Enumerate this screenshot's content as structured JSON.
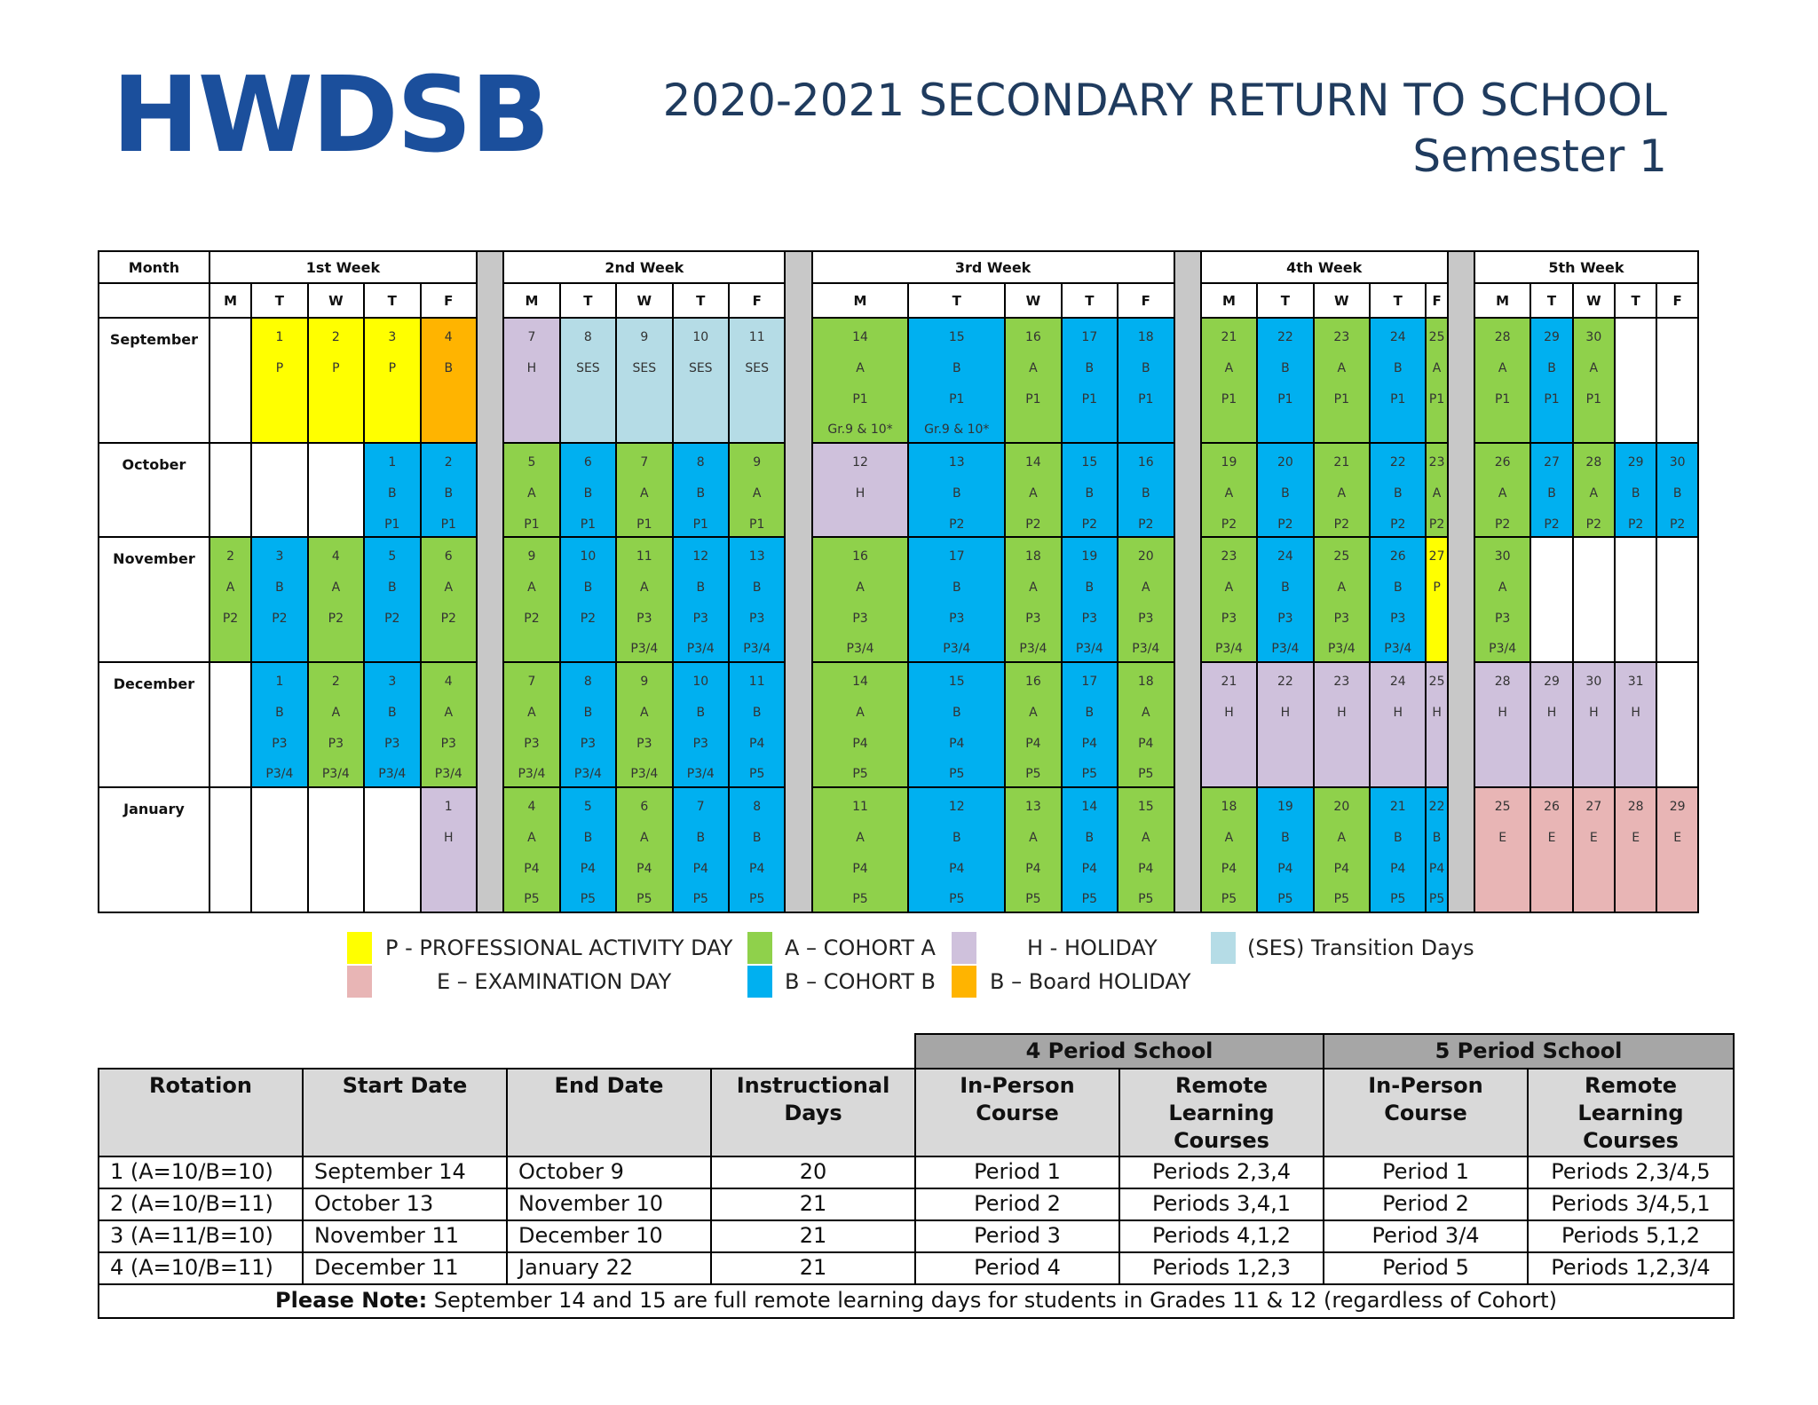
{
  "header": {
    "logo_text": "HWDSB",
    "title_line1": "2020-2021 SECONDARY RETURN TO SCHOOL",
    "title_line2": "Semester 1"
  },
  "calendar": {
    "month_header": "Month",
    "weeks": [
      "1st Week",
      "2nd Week",
      "3rd Week",
      "4th Week",
      "5th Week"
    ],
    "day_letters": [
      "M",
      "T",
      "W",
      "T",
      "F"
    ],
    "colors": {
      "P": "#ffff00",
      "B_holiday": "#ffb400",
      "H": "#cfc1dc",
      "S": "#b5dce6",
      "G_cohort_a": "#8fd14b",
      "L_cohort_b": "#00b0f0",
      "E": "#e8b5b5",
      "W": "#ffffff"
    },
    "months": [
      {
        "name": "September",
        "weeks": [
          [
            [
              "W"
            ],
            [
              "P",
              "1",
              "P"
            ],
            [
              "P",
              "2",
              "P"
            ],
            [
              "P",
              "3",
              "P"
            ],
            [
              "B",
              "4",
              "B"
            ]
          ],
          [
            [
              "H",
              "7",
              "H"
            ],
            [
              "S",
              "8",
              "SES"
            ],
            [
              "S",
              "9",
              "SES"
            ],
            [
              "S",
              "10",
              "SES"
            ],
            [
              "S",
              "11",
              "SES"
            ]
          ],
          [
            [
              "G",
              "14",
              "A",
              "P1",
              "Gr.9 & 10*"
            ],
            [
              "L",
              "15",
              "B",
              "P1",
              "Gr.9 & 10*"
            ],
            [
              "G",
              "16",
              "A",
              "P1"
            ],
            [
              "L",
              "17",
              "B",
              "P1"
            ],
            [
              "L",
              "18",
              "B",
              "P1"
            ]
          ],
          [
            [
              "G",
              "21",
              "A",
              "P1"
            ],
            [
              "L",
              "22",
              "B",
              "P1"
            ],
            [
              "G",
              "23",
              "A",
              "P1"
            ],
            [
              "L",
              "24",
              "B",
              "P1"
            ],
            [
              "G",
              "25",
              "A",
              "P1"
            ]
          ],
          [
            [
              "G",
              "28",
              "A",
              "P1"
            ],
            [
              "L",
              "29",
              "B",
              "P1"
            ],
            [
              "G",
              "30",
              "A",
              "P1"
            ],
            [
              "W"
            ],
            [
              "W"
            ]
          ]
        ]
      },
      {
        "name": "October",
        "weeks": [
          [
            [
              "W"
            ],
            [
              "W"
            ],
            [
              "W"
            ],
            [
              "L",
              "1",
              "B",
              "P1"
            ],
            [
              "L",
              "2",
              "B",
              "P1"
            ]
          ],
          [
            [
              "G",
              "5",
              "A",
              "P1"
            ],
            [
              "L",
              "6",
              "B",
              "P1"
            ],
            [
              "G",
              "7",
              "A",
              "P1"
            ],
            [
              "L",
              "8",
              "B",
              "P1"
            ],
            [
              "G",
              "9",
              "A",
              "P1"
            ]
          ],
          [
            [
              "H",
              "12",
              "H"
            ],
            [
              "L",
              "13",
              "B",
              "P2"
            ],
            [
              "G",
              "14",
              "A",
              "P2"
            ],
            [
              "L",
              "15",
              "B",
              "P2"
            ],
            [
              "L",
              "16",
              "B",
              "P2"
            ]
          ],
          [
            [
              "G",
              "19",
              "A",
              "P2"
            ],
            [
              "L",
              "20",
              "B",
              "P2"
            ],
            [
              "G",
              "21",
              "A",
              "P2"
            ],
            [
              "L",
              "22",
              "B",
              "P2"
            ],
            [
              "G",
              "23",
              "A",
              "P2"
            ]
          ],
          [
            [
              "G",
              "26",
              "A",
              "P2"
            ],
            [
              "L",
              "27",
              "B",
              "P2"
            ],
            [
              "G",
              "28",
              "A",
              "P2"
            ],
            [
              "L",
              "29",
              "B",
              "P2"
            ],
            [
              "L",
              "30",
              "B",
              "P2"
            ]
          ]
        ]
      },
      {
        "name": "November",
        "weeks": [
          [
            [
              "G",
              "2",
              "A",
              "P2"
            ],
            [
              "L",
              "3",
              "B",
              "P2"
            ],
            [
              "G",
              "4",
              "A",
              "P2"
            ],
            [
              "L",
              "5",
              "B",
              "P2"
            ],
            [
              "G",
              "6",
              "A",
              "P2"
            ]
          ],
          [
            [
              "G",
              "9",
              "A",
              "P2"
            ],
            [
              "L",
              "10",
              "B",
              "P2"
            ],
            [
              "G",
              "11",
              "A",
              "P3",
              "P3/4"
            ],
            [
              "L",
              "12",
              "B",
              "P3",
              "P3/4"
            ],
            [
              "L",
              "13",
              "B",
              "P3",
              "P3/4"
            ]
          ],
          [
            [
              "G",
              "16",
              "A",
              "P3",
              "P3/4"
            ],
            [
              "L",
              "17",
              "B",
              "P3",
              "P3/4"
            ],
            [
              "G",
              "18",
              "A",
              "P3",
              "P3/4"
            ],
            [
              "L",
              "19",
              "B",
              "P3",
              "P3/4"
            ],
            [
              "G",
              "20",
              "A",
              "P3",
              "P3/4"
            ]
          ],
          [
            [
              "G",
              "23",
              "A",
              "P3",
              "P3/4"
            ],
            [
              "L",
              "24",
              "B",
              "P3",
              "P3/4"
            ],
            [
              "G",
              "25",
              "A",
              "P3",
              "P3/4"
            ],
            [
              "L",
              "26",
              "B",
              "P3",
              "P3/4"
            ],
            [
              "P",
              "27",
              "P"
            ]
          ],
          [
            [
              "G",
              "30",
              "A",
              "P3",
              "P3/4"
            ],
            [
              "W"
            ],
            [
              "W"
            ],
            [
              "W"
            ],
            [
              "W"
            ]
          ]
        ]
      },
      {
        "name": "December",
        "weeks": [
          [
            [
              "W"
            ],
            [
              "L",
              "1",
              "B",
              "P3",
              "P3/4"
            ],
            [
              "G",
              "2",
              "A",
              "P3",
              "P3/4"
            ],
            [
              "L",
              "3",
              "B",
              "P3",
              "P3/4"
            ],
            [
              "G",
              "4",
              "A",
              "P3",
              "P3/4"
            ]
          ],
          [
            [
              "G",
              "7",
              "A",
              "P3",
              "P3/4"
            ],
            [
              "L",
              "8",
              "B",
              "P3",
              "P3/4"
            ],
            [
              "G",
              "9",
              "A",
              "P3",
              "P3/4"
            ],
            [
              "L",
              "10",
              "B",
              "P3",
              "P3/4"
            ],
            [
              "L",
              "11",
              "B",
              "P4",
              "P5"
            ]
          ],
          [
            [
              "G",
              "14",
              "A",
              "P4",
              "P5"
            ],
            [
              "L",
              "15",
              "B",
              "P4",
              "P5"
            ],
            [
              "G",
              "16",
              "A",
              "P4",
              "P5"
            ],
            [
              "L",
              "17",
              "B",
              "P4",
              "P5"
            ],
            [
              "G",
              "18",
              "A",
              "P4",
              "P5"
            ]
          ],
          [
            [
              "H",
              "21",
              "H"
            ],
            [
              "H",
              "22",
              "H"
            ],
            [
              "H",
              "23",
              "H"
            ],
            [
              "H",
              "24",
              "H"
            ],
            [
              "H",
              "25",
              "H"
            ]
          ],
          [
            [
              "H",
              "28",
              "H"
            ],
            [
              "H",
              "29",
              "H"
            ],
            [
              "H",
              "30",
              "H"
            ],
            [
              "H",
              "31",
              "H"
            ],
            [
              "W"
            ]
          ]
        ]
      },
      {
        "name": "January",
        "weeks": [
          [
            [
              "W"
            ],
            [
              "W"
            ],
            [
              "W"
            ],
            [
              "W"
            ],
            [
              "H",
              "1",
              "H"
            ]
          ],
          [
            [
              "G",
              "4",
              "A",
              "P4",
              "P5"
            ],
            [
              "L",
              "5",
              "B",
              "P4",
              "P5"
            ],
            [
              "G",
              "6",
              "A",
              "P4",
              "P5"
            ],
            [
              "L",
              "7",
              "B",
              "P4",
              "P5"
            ],
            [
              "L",
              "8",
              "B",
              "P4",
              "P5"
            ]
          ],
          [
            [
              "G",
              "11",
              "A",
              "P4",
              "P5"
            ],
            [
              "L",
              "12",
              "B",
              "P4",
              "P5"
            ],
            [
              "G",
              "13",
              "A",
              "P4",
              "P5"
            ],
            [
              "L",
              "14",
              "B",
              "P4",
              "P5"
            ],
            [
              "G",
              "15",
              "A",
              "P4",
              "P5"
            ]
          ],
          [
            [
              "G",
              "18",
              "A",
              "P4",
              "P5"
            ],
            [
              "L",
              "19",
              "B",
              "P4",
              "P5"
            ],
            [
              "G",
              "20",
              "A",
              "P4",
              "P5"
            ],
            [
              "L",
              "21",
              "B",
              "P4",
              "P5"
            ],
            [
              "L",
              "22",
              "B",
              "P4",
              "P5"
            ]
          ],
          [
            [
              "E",
              "25",
              "E"
            ],
            [
              "E",
              "26",
              "E"
            ],
            [
              "E",
              "27",
              "E"
            ],
            [
              "E",
              "28",
              "E"
            ],
            [
              "E",
              "29",
              "E"
            ]
          ]
        ]
      }
    ]
  },
  "legend": {
    "professional": "P - PROFESSIONAL ACTIVITY DAY",
    "cohort_a": "A – COHORT A",
    "holiday": "H - HOLIDAY",
    "transition": "(SES) Transition Days",
    "exam": "E – EXAMINATION DAY",
    "cohort_b": "B – COHORT B",
    "board_holiday": "B – Board HOLIDAY"
  },
  "rotation_table": {
    "group_headers": [
      "4  Period School",
      "5  Period School"
    ],
    "headers": [
      "Rotation",
      "Start Date",
      "End Date",
      "Instructional Days",
      "In-Person Course",
      "Remote Learning Courses",
      "In-Person Course",
      "Remote Learning Courses"
    ],
    "rows": [
      [
        "1 (A=10/B=10)",
        "September 14",
        "October 9",
        "20",
        "Period 1",
        "Periods 2,3,4",
        "Period 1",
        "Periods 2,3/4,5"
      ],
      [
        "2 (A=10/B=11)",
        "October 13",
        "November 10",
        "21",
        "Period 2",
        "Periods 3,4,1",
        "Period 2",
        "Periods 3/4,5,1"
      ],
      [
        "3 (A=11/B=10)",
        "November 11",
        "December 10",
        "21",
        "Period 3",
        "Periods 4,1,2",
        "Period 3/4",
        "Periods 5,1,2"
      ],
      [
        "4 (A=10/B=11)",
        "December 11",
        "January 22",
        "21",
        "Period 4",
        "Periods 1,2,3",
        "Period 5",
        "Periods 1,2,3/4"
      ]
    ],
    "note_label": "Please Note:",
    "note_text": " September 14 and 15 are full remote learning days for students in Grades 11 & 12 (regardless of Cohort)"
  }
}
